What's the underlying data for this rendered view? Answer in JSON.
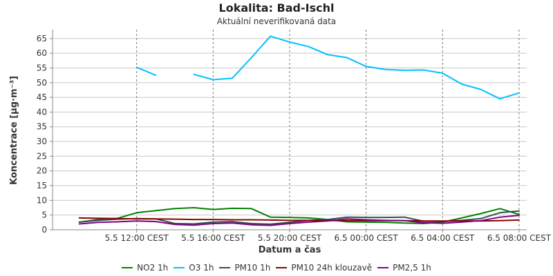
{
  "chart_data": {
    "type": "line",
    "title": "Lokalita: Bad-Ischl",
    "subtitle": "Aktuální neverifikovaná data",
    "xlabel": "Datum a čas",
    "ylabel": "Koncentrace [µg·m⁻³]",
    "ylim": [
      0,
      68
    ],
    "xlim": [
      -0.4,
      24.4
    ],
    "yticks": [
      0,
      5,
      10,
      15,
      20,
      25,
      30,
      35,
      40,
      45,
      50,
      55,
      60,
      65
    ],
    "xticks": [
      {
        "x": 4,
        "label": "5.5 12:00 CEST"
      },
      {
        "x": 8,
        "label": "5.5 16:00 CEST"
      },
      {
        "x": 12,
        "label": "5.5 20:00 CEST"
      },
      {
        "x": 16,
        "label": "6.5 00:00 CEST"
      },
      {
        "x": 20,
        "label": "6.5 04:00 CEST"
      },
      {
        "x": 24,
        "label": "6.5 08:00 CEST"
      }
    ],
    "x_hours": [
      1,
      2,
      3,
      4,
      5,
      6,
      7,
      8,
      9,
      10,
      11,
      12,
      13,
      14,
      15,
      16,
      17,
      18,
      19,
      20,
      21,
      22,
      23,
      24
    ],
    "grid": true,
    "legend_position": "bottom",
    "series": [
      {
        "name": "NO2 1h",
        "color": "#008000",
        "values": [
          2.6,
          3.5,
          3.9,
          5.8,
          6.5,
          7.2,
          7.5,
          6.9,
          7.3,
          7.2,
          4.3,
          4.2,
          4.0,
          3.5,
          2.7,
          2.6,
          2.5,
          2.3,
          2.1,
          2.6,
          4.0,
          5.5,
          7.2,
          5.2
        ]
      },
      {
        "name": "O3 1h",
        "color": "#00BFFF",
        "values": [
          null,
          null,
          null,
          55.2,
          52.5,
          null,
          52.8,
          51.0,
          51.5,
          58.5,
          65.8,
          63.8,
          62.2,
          59.5,
          58.5,
          55.5,
          54.5,
          54.2,
          54.3,
          53.2,
          49.5,
          47.7,
          44.5,
          46.5
        ]
      },
      {
        "name": "PM10 1h",
        "color": "#2F4F4F",
        "values": [
          2.6,
          3.2,
          3.6,
          3.8,
          3.7,
          2.1,
          2.0,
          2.6,
          2.8,
          2.1,
          1.9,
          2.5,
          3.2,
          3.5,
          4.3,
          4.2,
          4.2,
          4.3,
          2.9,
          2.8,
          3.2,
          3.8,
          5.8,
          6.4
        ]
      },
      {
        "name": "PM10 24h klouzavě",
        "color": "#8B0000",
        "values": [
          4.0,
          3.9,
          3.8,
          3.7,
          3.7,
          3.6,
          3.5,
          3.5,
          3.4,
          3.4,
          3.3,
          3.2,
          3.2,
          3.1,
          3.1,
          3.1,
          3.1,
          3.1,
          3.0,
          3.0,
          3.0,
          3.0,
          3.1,
          3.3
        ]
      },
      {
        "name": "PM2,5 1h",
        "color": "#800080",
        "values": [
          2.0,
          2.5,
          2.7,
          3.0,
          2.8,
          1.8,
          1.6,
          2.1,
          2.3,
          1.7,
          1.5,
          2.1,
          2.6,
          3.0,
          3.7,
          3.4,
          3.2,
          3.1,
          2.4,
          2.2,
          2.6,
          3.1,
          4.3,
          4.9
        ]
      }
    ]
  }
}
